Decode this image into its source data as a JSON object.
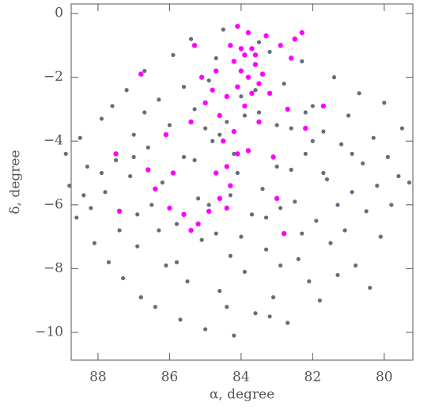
{
  "chart_data": {
    "type": "scatter",
    "x_label": "α, degree",
    "y_label": "δ, degree",
    "xlim": [
      88.75,
      79.2
    ],
    "ylim": [
      -10.87,
      0.3
    ],
    "xticks": [
      88,
      86,
      84,
      82,
      80
    ],
    "yticks": [
      {
        "value": 0,
        "label": "0"
      },
      {
        "value": -2,
        "label": "−2"
      },
      {
        "value": -4,
        "label": "−4"
      },
      {
        "value": -6,
        "label": "−6"
      },
      {
        "value": -8,
        "label": "−8"
      },
      {
        "value": -10,
        "label": "−10"
      }
    ],
    "series": [
      {
        "color": "#5f6f7f",
        "x": [
          88.9,
          88.8,
          88.6,
          88.5,
          88.3,
          88.2,
          88.1,
          87.9,
          87.8,
          87.7,
          87.6,
          87.5,
          87.4,
          87.3,
          87.2,
          87.1,
          87.0,
          86.9,
          86.8,
          86.7,
          86.6,
          86.5,
          86.4,
          86.3,
          86.2,
          86.1,
          86.0,
          85.9,
          85.8,
          85.7,
          85.6,
          85.5,
          85.4,
          85.3,
          85.2,
          85.1,
          85.0,
          84.9,
          84.8,
          84.7,
          84.6,
          84.5,
          84.4,
          84.3,
          84.2,
          84.1,
          84.0,
          83.9,
          83.8,
          83.7,
          83.6,
          83.5,
          83.4,
          83.3,
          83.2,
          83.1,
          83.0,
          82.9,
          82.8,
          82.7,
          82.6,
          82.5,
          82.4,
          82.3,
          82.2,
          82.1,
          82.0,
          81.9,
          81.8,
          81.7,
          81.6,
          81.5,
          81.4,
          81.3,
          81.2,
          81.1,
          81.0,
          80.9,
          80.8,
          80.7,
          80.6,
          80.5,
          80.4,
          80.3,
          80.2,
          80.1,
          80.0,
          79.9,
          79.8,
          79.6,
          79.5,
          79.3,
          87.9,
          86.9,
          85.9,
          85.6,
          84.9,
          84.6,
          84.2,
          83.9,
          83.5,
          83.0,
          82.6,
          82.3,
          81.7,
          85.3,
          84.7,
          83.3,
          86.3,
          88.4,
          87.0,
          84.4,
          83.2,
          85.8,
          82.9,
          81.3,
          86.7,
          84.0,
          83.6,
          82.0,
          80.9,
          85.0,
          84.3,
          82.2
        ],
        "values": [
          -4.4,
          -5.4,
          -6.4,
          -3.9,
          -4.8,
          -6.1,
          -7.2,
          -3.3,
          -5.6,
          -7.8,
          -2.9,
          -4.6,
          -6.8,
          -8.3,
          -2.4,
          -5.1,
          -3.8,
          -7.3,
          -8.9,
          -1.8,
          -4.2,
          -6.0,
          -9.2,
          -2.7,
          -5.3,
          -7.9,
          -3.5,
          -1.3,
          -6.6,
          -9.6,
          -4.5,
          -8.4,
          -0.8,
          -3.0,
          -5.8,
          -7.1,
          -9.9,
          -2.1,
          -4.0,
          -6.9,
          -8.7,
          -0.5,
          -3.4,
          -7.6,
          -10.1,
          -5.0,
          -2.6,
          -8.1,
          -4.3,
          -6.3,
          -9.4,
          -3.1,
          -5.5,
          -7.4,
          -1.2,
          -8.9,
          -4.8,
          -6.1,
          -2.2,
          -9.7,
          -3.6,
          -5.9,
          -7.7,
          -1.5,
          -4.4,
          -8.4,
          -2.9,
          -6.5,
          -9.0,
          -3.7,
          -5.2,
          -7.2,
          -2.0,
          -8.2,
          -4.1,
          -6.8,
          -3.2,
          -5.6,
          -7.9,
          -2.5,
          -4.7,
          -6.2,
          -8.6,
          -3.9,
          -5.4,
          -7.0,
          -2.8,
          -4.5,
          -6.0,
          -5.1,
          -3.6,
          -5.3,
          -5.0,
          -6.3,
          -5.0,
          -2.3,
          -6.0,
          -3.8,
          -4.4,
          -3.2,
          -0.9,
          -3.5,
          -4.9,
          -6.9,
          -5.0,
          -4.6,
          -1.4,
          -6.4,
          -6.8,
          -5.7,
          -4.5,
          -9.2,
          -9.5,
          -7.8,
          -7.9,
          -6.0,
          -3.1,
          -7.0,
          -2.4,
          -4.0,
          -4.4,
          -3.6,
          -5.7,
          -3.1
        ]
      },
      {
        "color": "#ff00ff",
        "x": [
          84.2,
          84.0,
          83.8,
          83.6,
          83.9,
          83.5,
          84.1,
          83.7,
          83.4,
          84.3,
          83.8,
          84.1,
          83.3,
          82.9,
          82.5,
          82.6,
          83.2,
          84.4,
          84.8,
          85.0,
          84.6,
          83.9,
          83.5,
          82.7,
          82.2,
          84.2,
          84.5,
          83.8,
          84.4,
          84.7,
          84.3,
          84.6,
          84.9,
          84.4,
          85.2,
          85.6,
          86.0,
          86.4,
          86.6,
          85.9,
          85.4,
          86.1,
          87.5,
          87.4,
          86.8,
          85.3,
          84.7,
          83.1,
          82.8,
          83.0,
          81.7,
          82.3,
          83.6,
          84.0,
          83.7,
          85.4,
          84.1,
          85.1
        ],
        "values": [
          -1.5,
          -1.8,
          -2.0,
          -1.6,
          -1.3,
          -2.2,
          -2.3,
          -1.1,
          -1.9,
          -1.0,
          -0.6,
          -0.4,
          -0.7,
          -1.0,
          -0.8,
          -1.4,
          -2.5,
          -2.6,
          -2.4,
          -2.8,
          -3.2,
          -2.9,
          -3.4,
          -3.0,
          -3.6,
          -3.7,
          -4.0,
          -4.3,
          -4.8,
          -5.0,
          -5.4,
          -5.8,
          -6.2,
          -6.1,
          -6.6,
          -6.3,
          -6.1,
          -5.5,
          -4.9,
          -5.0,
          -3.4,
          -3.8,
          -4.4,
          -6.2,
          -1.9,
          -1.0,
          -1.8,
          -4.5,
          -6.9,
          -5.8,
          -2.9,
          -0.6,
          -1.3,
          -1.1,
          -2.5,
          -6.8,
          -4.4,
          -2.0
        ]
      }
    ]
  }
}
